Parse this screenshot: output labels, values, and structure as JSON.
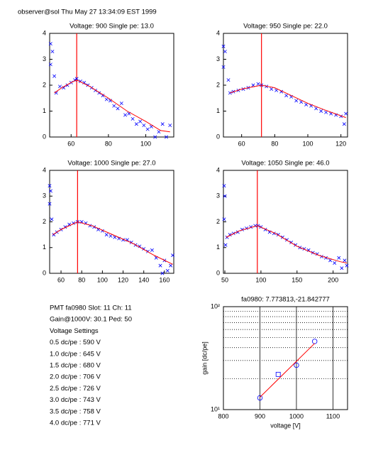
{
  "header": "observer@sol Thu May 27 13:34:09 EST 1999",
  "info": [
    "PMT fa0980 Slot: 11 Ch: 11",
    "Gain@1000V: 30.1 Ped: 50",
    "Voltage Settings",
    "0.5 dc/pe : 590 V",
    "1.0 dc/pe : 645 V",
    "1.5 dc/pe : 680 V",
    "2.0 dc/pe : 706 V",
    "2.5 dc/pe : 726 V",
    "3.0 dc/pe : 743 V",
    "3.5 dc/pe : 758 V",
    "4.0 dc/pe : 771 V"
  ],
  "chart_data": [
    {
      "type": "scatter",
      "title": "Voltage: 900 Single pe: 13.0",
      "xlim": [
        48.5,
        115
      ],
      "ylim": [
        0,
        4
      ],
      "xticks": [
        60,
        80,
        100
      ],
      "yticks": [
        0,
        1,
        2,
        3,
        4
      ],
      "vline": 63,
      "vline_color": "#ff0000",
      "series": [
        {
          "type": "scatter",
          "color": "#0000ff",
          "x": [
            49,
            49,
            50,
            51,
            52,
            54,
            56,
            58,
            60,
            62,
            63,
            65,
            67,
            69,
            71,
            73,
            75,
            77,
            79,
            81,
            83,
            85,
            87,
            89,
            91,
            93,
            95,
            97,
            99,
            101,
            103,
            105,
            107,
            109,
            111,
            113
          ],
          "values": [
            3.6,
            2.8,
            3.3,
            2.35,
            1.7,
            1.95,
            1.9,
            2.0,
            2.1,
            2.2,
            2.25,
            2.15,
            2.1,
            2.0,
            1.9,
            1.8,
            1.7,
            1.6,
            1.45,
            1.4,
            1.2,
            1.1,
            1.3,
            0.85,
            0.9,
            0.7,
            0.5,
            0.6,
            0.45,
            0.3,
            0.4,
            0.0,
            0.2,
            0.5,
            0.0,
            0.45
          ]
        },
        {
          "type": "line",
          "color": "#ff0000",
          "x": [
            51,
            55,
            60,
            63,
            70,
            80,
            90,
            100,
            108,
            113
          ],
          "values": [
            1.7,
            1.9,
            2.1,
            2.2,
            1.95,
            1.5,
            1.0,
            0.6,
            0.25,
            0.2
          ]
        }
      ]
    },
    {
      "type": "scatter",
      "title": "Voltage: 950 Single pe: 22.0",
      "xlim": [
        49,
        124
      ],
      "ylim": [
        0,
        4
      ],
      "xticks": [
        60,
        80,
        100,
        120
      ],
      "yticks": [
        0,
        1,
        2,
        3,
        4
      ],
      "vline": 72,
      "vline_color": "#ff0000",
      "series": [
        {
          "type": "scatter",
          "color": "#0000ff",
          "x": [
            49,
            49,
            50,
            52,
            53,
            55,
            58,
            61,
            64,
            67,
            70,
            72,
            75,
            78,
            81,
            84,
            87,
            90,
            93,
            96,
            99,
            102,
            105,
            108,
            111,
            114,
            117,
            120,
            122,
            123
          ],
          "values": [
            3.5,
            2.7,
            3.3,
            2.2,
            1.7,
            1.75,
            1.8,
            1.85,
            1.9,
            2.0,
            2.05,
            2.0,
            1.95,
            1.85,
            1.8,
            1.75,
            1.6,
            1.55,
            1.4,
            1.35,
            1.25,
            1.2,
            1.1,
            1.0,
            0.95,
            0.9,
            0.85,
            0.8,
            0.5,
            0.9
          ]
        },
        {
          "type": "line",
          "color": "#ff0000",
          "x": [
            53,
            60,
            72,
            80,
            90,
            100,
            110,
            123
          ],
          "values": [
            1.7,
            1.85,
            2.0,
            1.9,
            1.6,
            1.3,
            1.05,
            0.75
          ]
        }
      ]
    },
    {
      "type": "scatter",
      "title": "Voltage: 1000 Single pe: 27.0",
      "xlim": [
        49,
        169
      ],
      "ylim": [
        0,
        4
      ],
      "xticks": [
        60,
        80,
        100,
        120,
        140,
        160
      ],
      "yticks": [
        0,
        1,
        2,
        3,
        4
      ],
      "vline": 76,
      "vline_color": "#ff0000",
      "series": [
        {
          "type": "scatter",
          "color": "#0000ff",
          "x": [
            49,
            49,
            50,
            51,
            53,
            56,
            60,
            64,
            68,
            72,
            76,
            80,
            84,
            88,
            92,
            96,
            100,
            104,
            108,
            112,
            116,
            120,
            124,
            128,
            132,
            136,
            140,
            144,
            148,
            152,
            156,
            158,
            160,
            163,
            166,
            168
          ],
          "values": [
            3.4,
            2.7,
            3.2,
            2.1,
            1.5,
            1.6,
            1.7,
            1.8,
            1.9,
            1.95,
            2.0,
            2.0,
            1.95,
            1.85,
            1.8,
            1.7,
            1.65,
            1.5,
            1.45,
            1.4,
            1.35,
            1.3,
            1.3,
            1.2,
            1.1,
            1.05,
            0.95,
            0.85,
            0.9,
            0.6,
            0.3,
            0.0,
            0.5,
            0.1,
            0.3,
            0.7
          ]
        },
        {
          "type": "line",
          "color": "#ff0000",
          "x": [
            52,
            60,
            76,
            90,
            110,
            130,
            150,
            168
          ],
          "values": [
            1.5,
            1.7,
            2.0,
            1.85,
            1.5,
            1.15,
            0.7,
            0.35
          ]
        }
      ]
    },
    {
      "type": "scatter",
      "title": "Voltage: 1050 Single pe: 46.0",
      "xlim": [
        48,
        220
      ],
      "ylim": [
        0,
        4
      ],
      "xticks": [
        50,
        100,
        150,
        200
      ],
      "yticks": [
        0,
        1,
        2,
        3,
        4
      ],
      "vline": 95,
      "vline_color": "#ff0000",
      "series": [
        {
          "type": "scatter",
          "color": "#0000ff",
          "x": [
            49,
            49,
            50,
            51,
            53,
            57,
            62,
            68,
            74,
            80,
            86,
            92,
            96,
            100,
            106,
            112,
            118,
            124,
            130,
            136,
            142,
            148,
            154,
            160,
            166,
            172,
            178,
            184,
            190,
            196,
            202,
            208,
            212,
            216,
            219
          ],
          "values": [
            3.4,
            2.1,
            3.0,
            1.1,
            1.4,
            1.5,
            1.55,
            1.6,
            1.7,
            1.75,
            1.8,
            1.85,
            1.85,
            1.8,
            1.7,
            1.6,
            1.55,
            1.5,
            1.4,
            1.3,
            1.2,
            1.1,
            1.0,
            0.95,
            0.9,
            0.8,
            0.75,
            0.65,
            0.6,
            0.5,
            0.4,
            0.6,
            0.2,
            0.5,
            0.3
          ]
        },
        {
          "type": "line",
          "color": "#ff0000",
          "x": [
            52,
            70,
            95,
            120,
            150,
            180,
            210,
            219
          ],
          "values": [
            1.4,
            1.65,
            1.85,
            1.55,
            1.05,
            0.7,
            0.45,
            0.4
          ]
        }
      ]
    },
    {
      "type": "scatter",
      "title": "fa0980: 7.773813,-21.842777",
      "x_label": "voltage [V]",
      "y_label": "gain [dc/pe]",
      "log_y": true,
      "grid": true,
      "xlim": [
        800,
        1140
      ],
      "ylim": [
        10,
        100
      ],
      "xticks": [
        800,
        900,
        1000,
        1100
      ],
      "yticks": [
        {
          "value": 10,
          "label": "10¹"
        },
        {
          "value": 100,
          "label": "10²"
        }
      ],
      "yminor": [
        20,
        30,
        40,
        50,
        60,
        70,
        80,
        90
      ],
      "series": [
        {
          "type": "scatter",
          "marker": "o",
          "color": "#0000ff",
          "x": [
            900,
            1000,
            1050
          ],
          "values": [
            13,
            27,
            46
          ]
        },
        {
          "type": "scatter",
          "marker": "s",
          "color": "#0000ff",
          "x": [
            950
          ],
          "values": [
            22
          ]
        },
        {
          "type": "line",
          "color": "#ff0000",
          "x": [
            900,
            1050
          ],
          "values": [
            13.2,
            44
          ]
        }
      ]
    }
  ]
}
